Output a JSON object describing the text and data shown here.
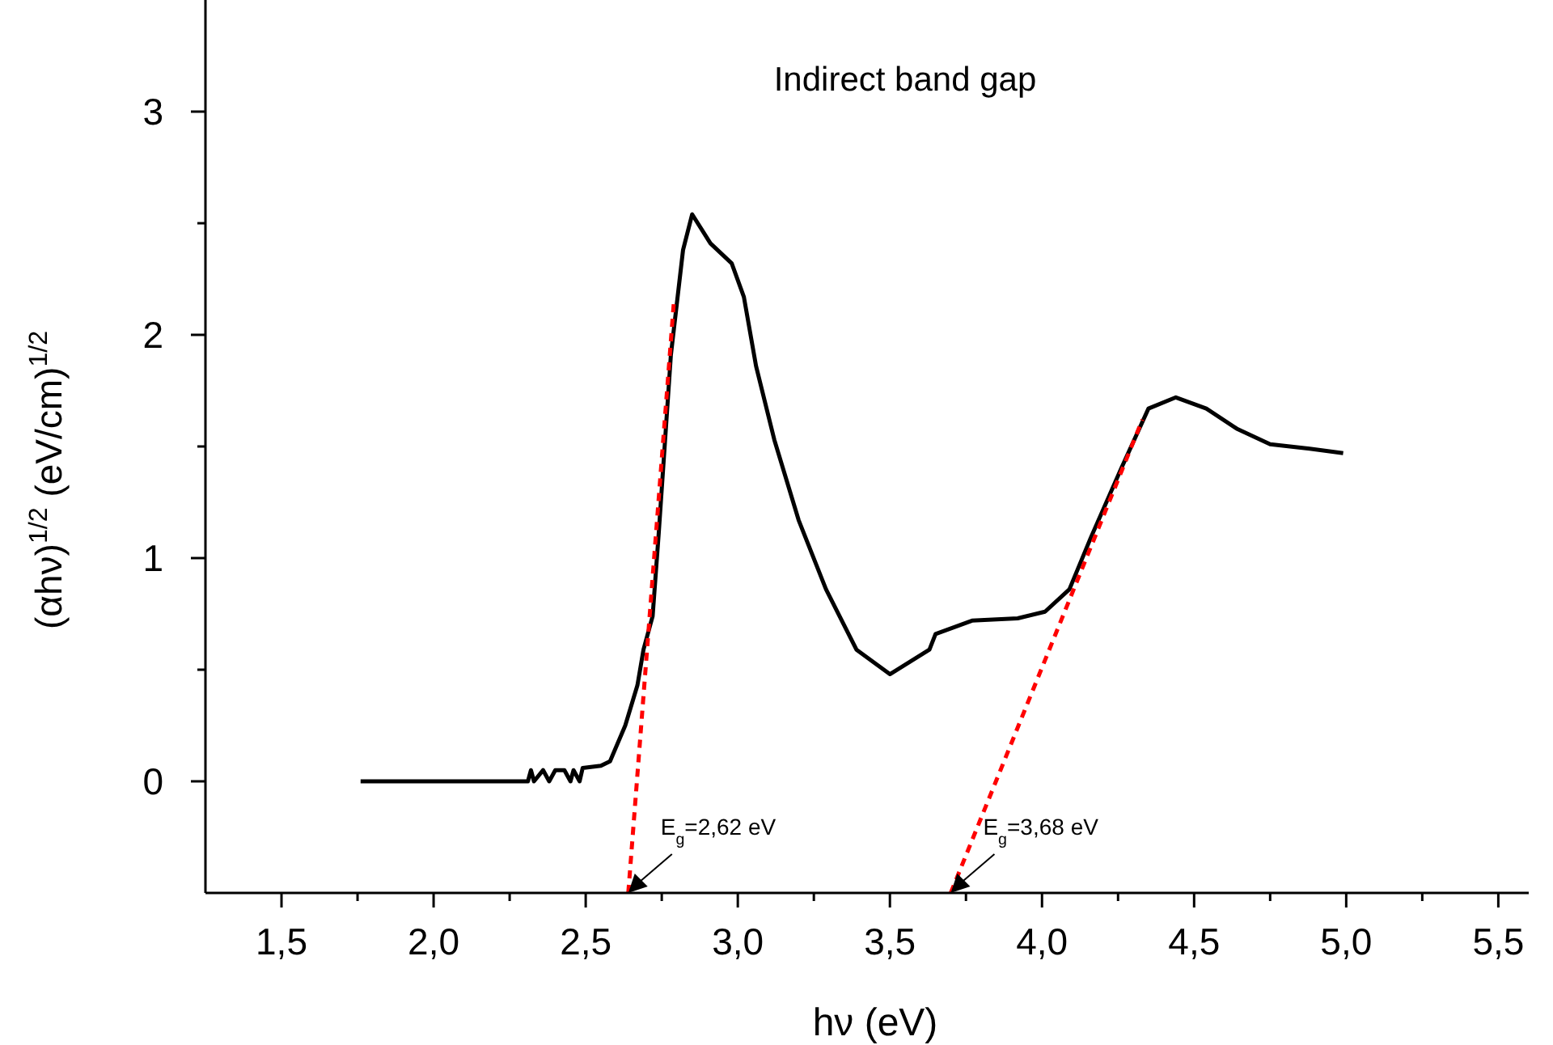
{
  "chart_data": {
    "type": "line",
    "title": "Indirect band gap",
    "xlabel": "hν (eV)",
    "ylabel": "(αhν)$^{1/2}$ (eV/cm)$^{1/2}$",
    "xlim": [
      1.25,
      5.6
    ],
    "ylim": [
      -0.5,
      3.5
    ],
    "xticks": [
      {
        "value": 1.5,
        "label": "1,5"
      },
      {
        "value": 1.75,
        "label": null
      },
      {
        "value": 2,
        "label": "2,0"
      },
      {
        "value": 2.25,
        "label": null
      },
      {
        "value": 2.5,
        "label": "2,5"
      },
      {
        "value": 2.75,
        "label": null
      },
      {
        "value": 3,
        "label": "3,0"
      },
      {
        "value": 3.25,
        "label": null
      },
      {
        "value": 3.5,
        "label": "3,5"
      },
      {
        "value": 3.75,
        "label": null
      },
      {
        "value": 4,
        "label": "4,0"
      },
      {
        "value": 4.25,
        "label": null
      },
      {
        "value": 4.5,
        "label": "4,5"
      },
      {
        "value": 4.75,
        "label": null
      },
      {
        "value": 5,
        "label": "5,0"
      },
      {
        "value": 5.25,
        "label": null
      },
      {
        "value": 5.5,
        "label": "5,5"
      }
    ],
    "yticks": [
      0,
      {
        "value": 0.5,
        "label": null
      },
      1,
      {
        "value": 1.5,
        "label": null
      },
      2,
      {
        "value": 2.5,
        "label": null
      },
      3
    ],
    "grid": false,
    "series": [
      {
        "color": "#000000",
        "line_style": "solid",
        "x": [
          1.76,
          2.31,
          2.32,
          2.33,
          2.36,
          2.38,
          2.4,
          2.43,
          2.45,
          2.46,
          2.48,
          2.49,
          2.55,
          2.58,
          2.63,
          2.67,
          2.69,
          2.72,
          2.74,
          2.78,
          2.82,
          2.85,
          2.91,
          2.98,
          3.02,
          3.06,
          3.12,
          3.2,
          3.29,
          3.39,
          3.5,
          3.63,
          3.65,
          3.77,
          3.92,
          4.01,
          4.09,
          4.16,
          4.26,
          4.35,
          4.44,
          4.54,
          4.64,
          4.75,
          4.88,
          4.99
        ],
        "values": [
          0,
          0,
          0.05,
          0,
          0.05,
          0,
          0.05,
          0.05,
          0,
          0.05,
          0,
          0.06,
          0.07,
          0.09,
          0.25,
          0.43,
          0.59,
          0.74,
          1.11,
          1.91,
          2.38,
          2.54,
          2.41,
          2.32,
          2.17,
          1.86,
          1.53,
          1.17,
          0.86,
          0.59,
          0.48,
          0.59,
          0.66,
          0.72,
          0.73,
          0.76,
          0.86,
          1.09,
          1.4,
          1.67,
          1.72,
          1.67,
          1.58,
          1.51,
          1.49,
          1.47
        ]
      },
      {
        "color": "#ff0000",
        "line_style": "dashed",
        "x": [
          2.64,
          2.79
        ],
        "values": [
          -0.5,
          2.15
        ]
      },
      {
        "color": "#ff0000",
        "line_style": "dashed",
        "x": [
          3.7,
          4.33
        ],
        "values": [
          -0.5,
          1.62
        ]
      }
    ],
    "annotations": [
      {
        "text": "E$_{g}$=2,62 eV",
        "x": 2.64,
        "y": -0.5
      },
      {
        "text": "E$_{g}$=3,68 eV",
        "x": 3.7,
        "y": -0.5
      }
    ]
  }
}
